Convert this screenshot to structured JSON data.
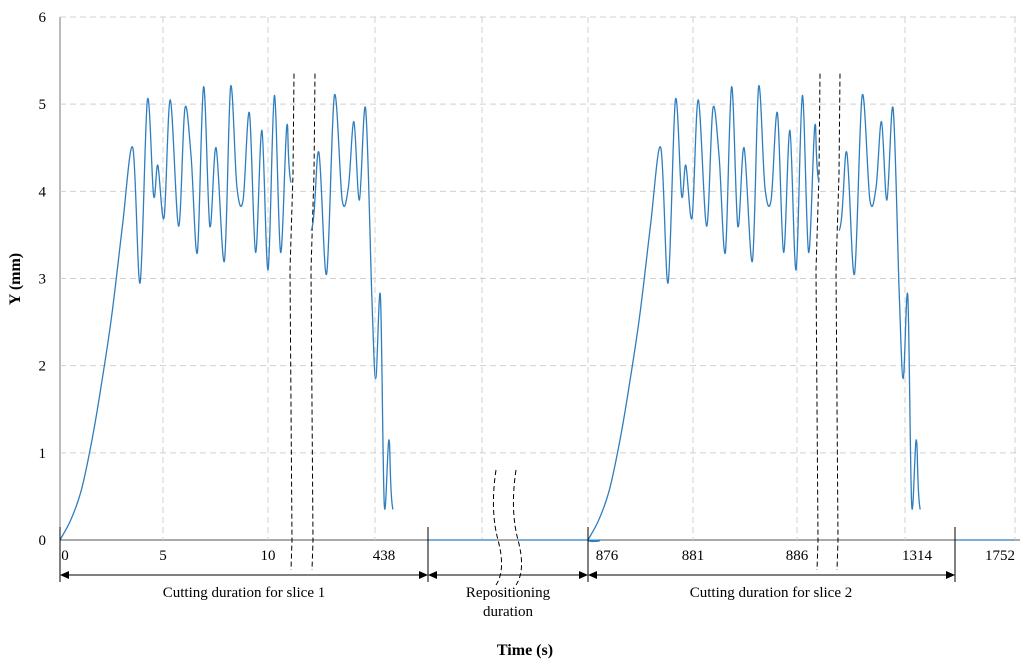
{
  "chart_data": {
    "type": "line",
    "xlabel": "Time (s)",
    "ylabel": "Y (mm)",
    "ylim": [
      0,
      6
    ],
    "yticks": [
      "0",
      "1",
      "2",
      "3",
      "4",
      "5",
      "6"
    ],
    "grid": true,
    "series_color": "#2e7ebf",
    "x_tick_labels": [
      "0",
      "5",
      "10",
      "438",
      "876",
      "881",
      "886",
      "1314",
      "1752"
    ],
    "segments": [
      {
        "label": "Cutting duration for slice 1"
      },
      {
        "label_lines": [
          "Repositioning",
          "duration"
        ]
      },
      {
        "label": "Cutting duration for slice 2"
      }
    ],
    "series": [
      {
        "values": [
          [
            0,
            0.0
          ],
          [
            0.5,
            0.22
          ],
          [
            1.0,
            0.55
          ],
          [
            1.5,
            1.1
          ],
          [
            2.0,
            1.8
          ],
          [
            2.5,
            2.6
          ],
          [
            3.0,
            3.6
          ],
          [
            3.5,
            4.5
          ],
          [
            3.85,
            2.95
          ],
          [
            4.2,
            5.05
          ],
          [
            4.5,
            3.95
          ],
          [
            4.7,
            4.3
          ],
          [
            5.0,
            3.7
          ],
          [
            5.3,
            5.05
          ],
          [
            5.7,
            3.6
          ],
          [
            6.0,
            4.95
          ],
          [
            6.3,
            4.4
          ],
          [
            6.6,
            3.3
          ],
          [
            6.9,
            5.2
          ],
          [
            7.2,
            3.6
          ],
          [
            7.5,
            4.5
          ],
          [
            7.9,
            3.2
          ],
          [
            8.2,
            5.2
          ],
          [
            8.5,
            4.05
          ],
          [
            8.8,
            3.9
          ],
          [
            9.1,
            4.9
          ],
          [
            9.4,
            3.3
          ],
          [
            9.7,
            4.7
          ],
          [
            10.0,
            3.1
          ],
          [
            10.3,
            5.1
          ],
          [
            10.6,
            3.3
          ],
          [
            10.9,
            4.75
          ],
          [
            11.1,
            4.1
          ],
          [
            431,
            3.55
          ],
          [
            432,
            4.45
          ],
          [
            433,
            3.05
          ],
          [
            434,
            5.1
          ],
          [
            435,
            3.9
          ],
          [
            435.8,
            4.05
          ],
          [
            436.5,
            4.8
          ],
          [
            437.2,
            3.9
          ],
          [
            438,
            4.95
          ],
          [
            438.8,
            2.8
          ],
          [
            439.3,
            1.85
          ],
          [
            439.9,
            2.8
          ],
          [
            440.4,
            0.4
          ],
          [
            441.0,
            1.15
          ],
          [
            441.5,
            0.35
          ],
          [
            443.5,
            0.1
          ],
          [
            446,
            0.0
          ],
          [
            876,
            0.0
          ],
          [
            876,
            0.0
          ],
          [
            876.5,
            0.22
          ],
          [
            877.0,
            0.55
          ],
          [
            877.5,
            1.1
          ],
          [
            878.0,
            1.8
          ],
          [
            878.5,
            2.6
          ],
          [
            879.0,
            3.6
          ],
          [
            879.5,
            4.5
          ],
          [
            879.85,
            2.95
          ],
          [
            880.2,
            5.05
          ],
          [
            880.5,
            3.95
          ],
          [
            880.7,
            4.3
          ],
          [
            881.0,
            3.7
          ],
          [
            881.3,
            5.05
          ],
          [
            881.7,
            3.6
          ],
          [
            882.0,
            4.95
          ],
          [
            882.3,
            4.4
          ],
          [
            882.6,
            3.3
          ],
          [
            882.9,
            5.2
          ],
          [
            883.2,
            3.6
          ],
          [
            883.5,
            4.5
          ],
          [
            883.9,
            3.2
          ],
          [
            884.2,
            5.2
          ],
          [
            884.5,
            4.05
          ],
          [
            884.8,
            3.9
          ],
          [
            885.1,
            4.9
          ],
          [
            885.4,
            3.3
          ],
          [
            885.7,
            4.7
          ],
          [
            886.0,
            3.1
          ],
          [
            886.3,
            5.1
          ],
          [
            886.6,
            3.3
          ],
          [
            886.9,
            4.75
          ],
          [
            887.1,
            4.1
          ],
          [
            1307,
            3.55
          ],
          [
            1308,
            4.45
          ],
          [
            1309,
            3.05
          ],
          [
            1310,
            5.1
          ],
          [
            1311,
            3.9
          ],
          [
            1311.8,
            4.05
          ],
          [
            1312.5,
            4.8
          ],
          [
            1313.2,
            3.9
          ],
          [
            1314,
            4.95
          ],
          [
            1314.8,
            2.8
          ],
          [
            1315.3,
            1.85
          ],
          [
            1315.9,
            2.8
          ],
          [
            1316.4,
            0.4
          ],
          [
            1317.0,
            1.15
          ],
          [
            1317.5,
            0.35
          ],
          [
            1319.5,
            0.1
          ],
          [
            1322,
            0.0
          ],
          [
            1752,
            0.0
          ]
        ]
      }
    ]
  }
}
